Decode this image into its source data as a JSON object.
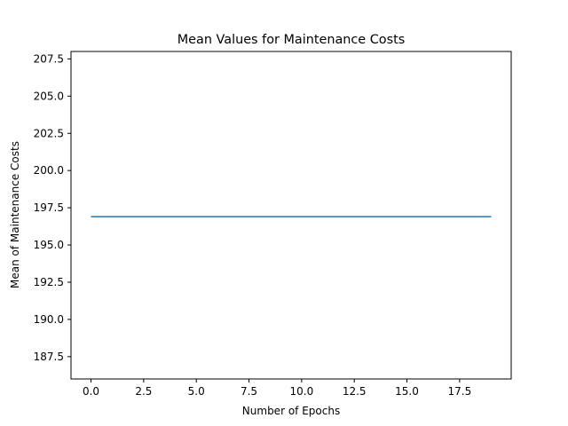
{
  "chart_data": {
    "type": "line",
    "title": "Mean Values for Maintenance Costs",
    "xlabel": "Number of Epochs",
    "ylabel": "Mean of Maintenance Costs",
    "xlim": [
      -0.95,
      19.95
    ],
    "ylim": [
      186.0,
      208.0
    ],
    "xticks": [
      0.0,
      2.5,
      5.0,
      7.5,
      10.0,
      12.5,
      15.0,
      17.5
    ],
    "xtick_labels": [
      "0.0",
      "2.5",
      "5.0",
      "7.5",
      "10.0",
      "12.5",
      "15.0",
      "17.5"
    ],
    "yticks": [
      187.5,
      190.0,
      192.5,
      195.0,
      197.5,
      200.0,
      202.5,
      205.0,
      207.5
    ],
    "ytick_labels": [
      "187.5",
      "190.0",
      "192.5",
      "195.0",
      "197.5",
      "200.0",
      "202.5",
      "205.0",
      "207.5"
    ],
    "grid": false,
    "series": [
      {
        "color": "#1f77b4",
        "x": [
          0,
          1,
          2,
          3,
          4,
          5,
          6,
          7,
          8,
          9,
          10,
          11,
          12,
          13,
          14,
          15,
          16,
          17,
          18,
          19
        ],
        "y": [
          196.9,
          196.9,
          196.9,
          196.9,
          196.9,
          196.9,
          196.9,
          196.9,
          196.9,
          196.9,
          196.9,
          196.9,
          196.9,
          196.9,
          196.9,
          196.9,
          196.9,
          196.9,
          196.9,
          196.9
        ]
      }
    ]
  }
}
